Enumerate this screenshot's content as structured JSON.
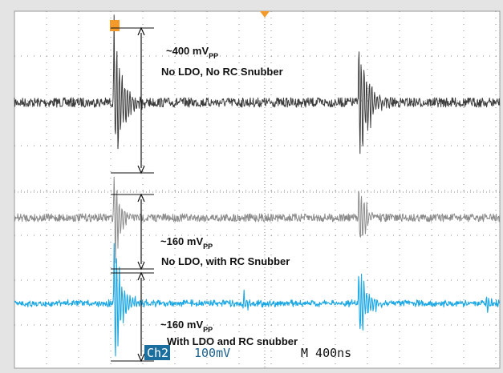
{
  "colors": {
    "frame_bg": "#e4e4e4",
    "screen_bg": "#ffffff",
    "grid": "#8a8a8a",
    "trace_top": "#3c3c3c",
    "trace_mid": "#8c8c8c",
    "trace_bottom": "#1aa7e4",
    "marker": "#f39a2a",
    "ch_badge_bg": "#1b6f9e",
    "status_text": "#1a5f8a"
  },
  "chart_data": {
    "type": "line",
    "grid": true,
    "divisions": {
      "x": 10,
      "y": 8
    },
    "time_per_div_ns": 400,
    "volts_per_div_mV": 100,
    "pulses_at_div": [
      3.1,
      10.6
    ],
    "series": [
      {
        "id": "top",
        "pp_mV": 400,
        "ringing": "strong"
      },
      {
        "id": "mid",
        "pp_mV": 160,
        "ringing": "moderate"
      },
      {
        "id": "bottom",
        "pp_mV": 160,
        "ringing": "light"
      }
    ],
    "annotations": [
      {
        "id": "top",
        "amp_prefix": "~400 mV",
        "amp_sub": "PP",
        "desc": "No LDO, No RC Snubber"
      },
      {
        "id": "mid",
        "amp_prefix": "~160 mV",
        "amp_sub": "PP",
        "desc": "No LDO, with RC Snubber"
      },
      {
        "id": "bottom",
        "amp_prefix": "~160 mV",
        "amp_sub": "PP",
        "desc": "With LDO and RC snubber"
      }
    ]
  },
  "status_bar": {
    "channel": "Ch2",
    "scale": "100mV",
    "timebase": "M 400ns"
  }
}
